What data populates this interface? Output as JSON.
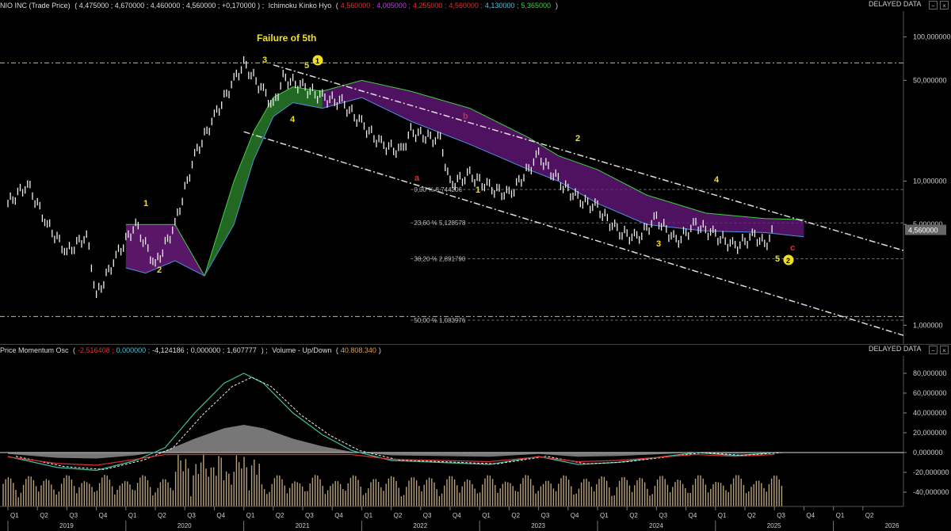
{
  "top_panel": {
    "title": "NIO INC (Trade Price)",
    "ohlc": "( 4,475000 ; 4,670000 ; 4,460000 ; 4,560000 ; +0,170000 ) ;",
    "indicator_name": "Ichimoku Kinko Hyo",
    "indicator_values": [
      {
        "text": "4,560000",
        "color": "#e03030"
      },
      {
        "text": "4,005000",
        "color": "#c040e0"
      },
      {
        "text": "4,255000",
        "color": "#e03030"
      },
      {
        "text": "4,560000",
        "color": "#e03030"
      },
      {
        "text": "4,130000",
        "color": "#40c8e0"
      },
      {
        "text": "5,365000",
        "color": "#40d040"
      }
    ],
    "delayed": "DELAYED DATA",
    "annotation_title": "Failure of 5th",
    "last_price": "4,560000",
    "y_ticks": [
      "100,000000",
      "50,000000",
      "10,000000",
      "5,000000",
      "1,000000"
    ],
    "fib_labels": [
      "0,00 % 8,744206",
      "23,60 % 5,128578",
      "38,20 % 2,891790",
      "50,00 % 1,083976"
    ],
    "wave_labels": {
      "w3_top": "3",
      "w5_top": "5",
      "w1_circle": "1",
      "w4_top": "4",
      "w1_2020": "1",
      "w2_2020": "2",
      "a": "a",
      "b": "b",
      "c": "c",
      "w1_2022": "1",
      "w2_2023": "2",
      "w3_2023": "3",
      "w4_2024": "4",
      "w5_2025": "5",
      "w2_circle": "2"
    }
  },
  "bottom_panel": {
    "title": "Price Momentum Osc",
    "values": [
      {
        "text": "-2,516408",
        "color": "#e03030"
      },
      {
        "text": "0,000000",
        "color": "#40c8e0"
      },
      {
        "text": "-4,124186",
        "color": "#dddddd"
      },
      {
        "text": "0,000000",
        "color": "#dddddd"
      },
      {
        "text": "1,607777",
        "color": "#dddddd"
      }
    ],
    "volume_name": "Volume - Up/Down",
    "volume_value": "40.808.340",
    "delayed": "DELAYED DATA",
    "y_ticks": [
      "80,000000",
      "60,000000",
      "40,000000",
      "20,000000",
      "0,000000",
      "-20,000000",
      "-40,000000"
    ]
  },
  "x_axis": {
    "quarters": [
      "Q1",
      "Q2",
      "Q3",
      "Q4",
      "Q1",
      "Q2",
      "Q3",
      "Q4",
      "Q1",
      "Q2",
      "Q3",
      "Q4",
      "Q1",
      "Q2",
      "Q3",
      "Q4",
      "Q1",
      "Q2",
      "Q3",
      "Q4",
      "Q1",
      "Q2",
      "Q3",
      "Q4",
      "Q1",
      "Q2",
      "Q3",
      "Q4",
      "Q1",
      "Q2"
    ],
    "years": [
      "2019",
      "2020",
      "2021",
      "2022",
      "2023",
      "2024",
      "2025",
      "2026"
    ]
  },
  "chart_data": {
    "type": "line",
    "title": "NIO INC (Trade Price)",
    "y_scale": "log",
    "ylim": [
      0.8,
      140
    ],
    "price_points": [
      [
        "2019-01",
        7.0
      ],
      [
        "2019-03",
        9.5
      ],
      [
        "2019-05",
        5.0
      ],
      [
        "2019-07",
        3.2
      ],
      [
        "2019-09",
        4.2
      ],
      [
        "2019-10",
        1.6
      ],
      [
        "2019-12",
        3.0
      ],
      [
        "2020-02",
        5.0
      ],
      [
        "2020-04",
        2.6
      ],
      [
        "2020-06",
        5.0
      ],
      [
        "2020-08",
        15
      ],
      [
        "2020-10",
        28
      ],
      [
        "2020-12",
        50
      ],
      [
        "2021-01",
        65
      ],
      [
        "2021-03",
        42
      ],
      [
        "2021-04",
        33
      ],
      [
        "2021-05",
        52
      ],
      [
        "2021-07",
        45
      ],
      [
        "2021-09",
        38
      ],
      [
        "2021-11",
        35
      ],
      [
        "2022-01",
        25
      ],
      [
        "2022-03",
        18
      ],
      [
        "2022-05",
        16
      ],
      [
        "2022-06",
        22
      ],
      [
        "2022-09",
        19
      ],
      [
        "2022-10",
        9.5
      ],
      [
        "2022-12",
        11
      ],
      [
        "2023-02",
        9
      ],
      [
        "2023-04",
        8
      ],
      [
        "2023-07",
        15
      ],
      [
        "2023-09",
        10
      ],
      [
        "2023-11",
        7.5
      ],
      [
        "2024-01",
        6.5
      ],
      [
        "2024-03",
        4.5
      ],
      [
        "2024-05",
        4.0
      ],
      [
        "2024-07",
        5.5
      ],
      [
        "2024-09",
        3.8
      ],
      [
        "2024-11",
        5.0
      ],
      [
        "2025-01",
        4.2
      ],
      [
        "2025-03",
        3.5
      ],
      [
        "2025-05",
        4.2
      ],
      [
        "2025-06",
        3.6
      ],
      [
        "2025-07",
        4.56
      ]
    ],
    "fib_levels": [
      8.744206,
      5.128578,
      2.89179,
      1.083976
    ],
    "ichimoku_cloud": [
      [
        "2020-01",
        5.0,
        2.5
      ],
      [
        "2020-03",
        5.0,
        2.3
      ],
      [
        "2020-06",
        5.0,
        2.8
      ],
      [
        "2020-09",
        2.2,
        2.2
      ],
      [
        "2020-12",
        10,
        5
      ],
      [
        "2021-02",
        22,
        14
      ],
      [
        "2021-04",
        38,
        28
      ],
      [
        "2021-06",
        45,
        35
      ],
      [
        "2021-09",
        42,
        32
      ],
      [
        "2022-01",
        50,
        38
      ],
      [
        "2022-06",
        42,
        26
      ],
      [
        "2022-12",
        32,
        18
      ],
      [
        "2023-06",
        20,
        12
      ],
      [
        "2023-09",
        15,
        10
      ],
      [
        "2024-01",
        12,
        7
      ],
      [
        "2024-06",
        8,
        5
      ],
      [
        "2024-12",
        6,
        4.5
      ],
      [
        "2025-06",
        5.5,
        4.4
      ],
      [
        "2025-10",
        5.4,
        4.1
      ]
    ],
    "momentum_osc": [
      [
        "2019-01",
        -4
      ],
      [
        "2019-06",
        -15
      ],
      [
        "2019-10",
        -18
      ],
      [
        "2020-02",
        -8
      ],
      [
        "2020-05",
        5
      ],
      [
        "2020-08",
        40
      ],
      [
        "2020-11",
        70
      ],
      [
        "2021-01",
        80
      ],
      [
        "2021-03",
        70
      ],
      [
        "2021-06",
        40
      ],
      [
        "2021-09",
        18
      ],
      [
        "2021-12",
        2
      ],
      [
        "2022-04",
        -8
      ],
      [
        "2022-09",
        -10
      ],
      [
        "2023-02",
        -12
      ],
      [
        "2023-07",
        -4
      ],
      [
        "2023-11",
        -12
      ],
      [
        "2024-03",
        -10
      ],
      [
        "2024-07",
        -5
      ],
      [
        "2024-11",
        0
      ],
      [
        "2025-03",
        -3
      ],
      [
        "2025-07",
        0
      ]
    ]
  }
}
